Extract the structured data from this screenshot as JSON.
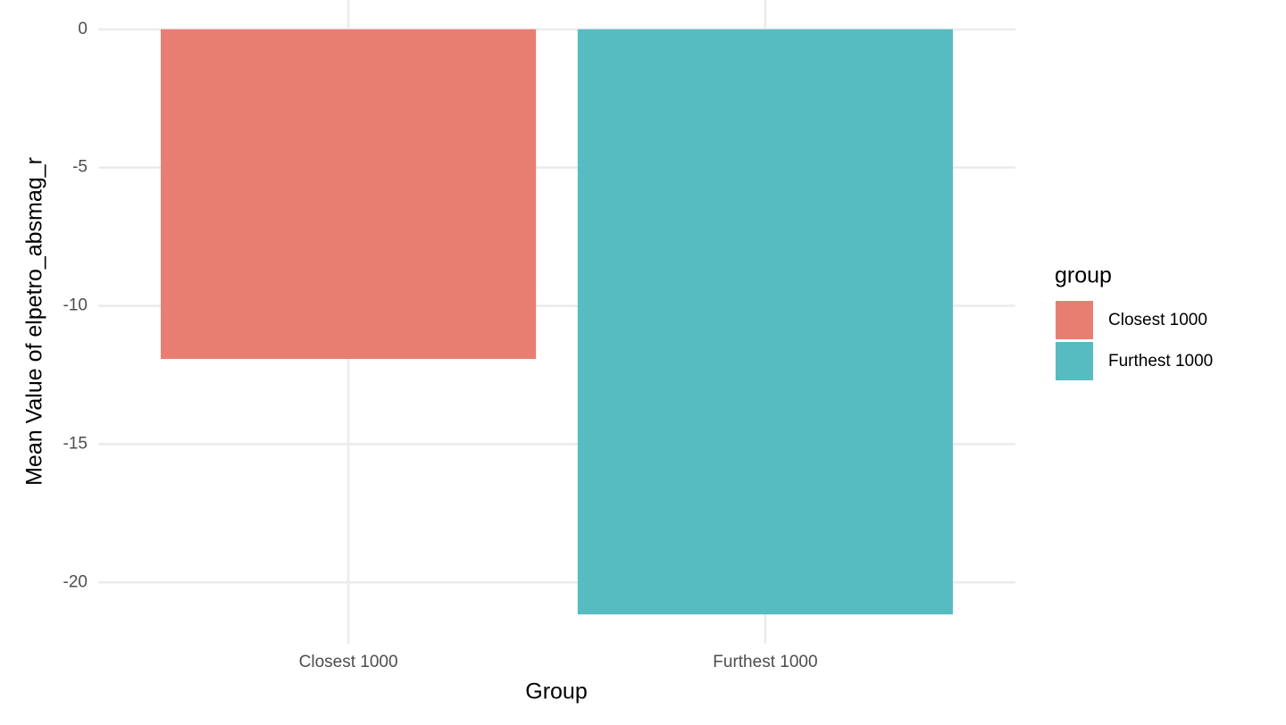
{
  "chart_data": {
    "type": "bar",
    "x_label": "Group",
    "y_label": "Mean Value of elpetro_absmag_r",
    "legend_title": "group",
    "categories": [
      "Closest 1000",
      "Furthest 1000"
    ],
    "values": [
      -11.92,
      -21.16
    ],
    "colors": [
      "#e87e72",
      "#56bcc2"
    ],
    "ylim": [
      -22.22,
      1.06
    ],
    "yticks": [
      -20,
      -15,
      -10,
      -5,
      0
    ],
    "grid": true,
    "legend_position": "right"
  }
}
